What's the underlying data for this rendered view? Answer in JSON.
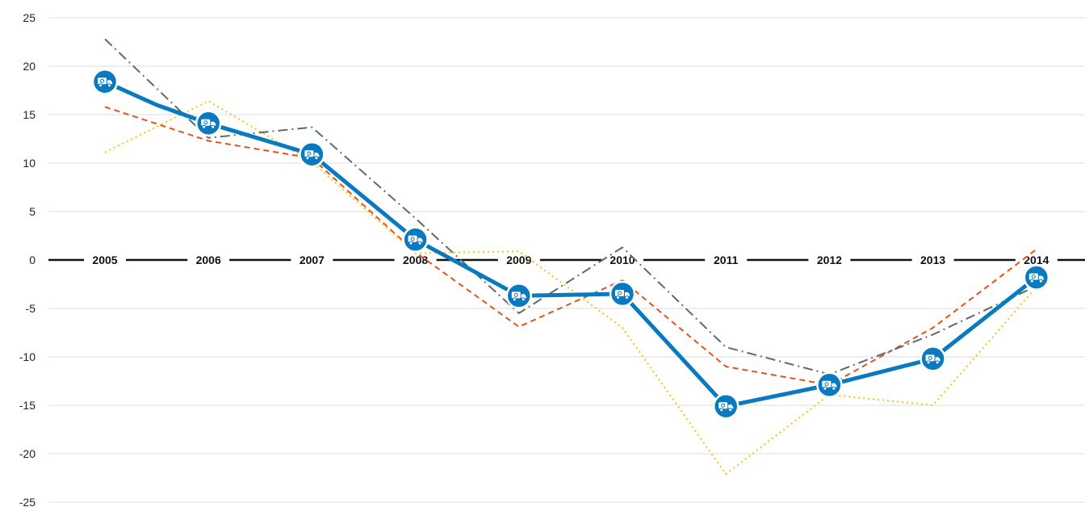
{
  "chart_data": {
    "type": "line",
    "title": "",
    "xlabel": "",
    "ylabel": "",
    "categories": [
      "2005",
      "2006",
      "2007",
      "2008",
      "2009",
      "2010",
      "2011",
      "2012",
      "2013",
      "2014"
    ],
    "ylim": [
      -25,
      25
    ],
    "yticks": [
      25,
      20,
      15,
      10,
      5,
      0,
      -5,
      -10,
      -15,
      -20,
      -25
    ],
    "grid": true,
    "legend": "none",
    "category_labels_on_zero_line": true,
    "series": [
      {
        "values": [
          18.4,
          14.1,
          10.9,
          2.1,
          -3.7,
          -3.5,
          -15.1,
          -12.9,
          -10.2,
          -1.8
        ],
        "color": "#0a7ac0",
        "style": "solid",
        "marker": "truck-icon",
        "extra_points": [
          {
            "x": 0.5,
            "y": 16.0
          }
        ]
      },
      {
        "values": [
          15.8,
          12.3,
          10.5,
          0.8,
          -6.9,
          -2.1,
          -11.0,
          -12.9,
          -7.0,
          1.1
        ],
        "color": "#e0531f",
        "style": "dashed"
      },
      {
        "values": [
          11.1,
          16.4,
          10.1,
          0.7,
          0.9,
          -7.0,
          -22.1,
          -13.9,
          -15.0,
          -2.8
        ],
        "color": "#f2c314",
        "style": "dotted"
      },
      {
        "values": [
          22.8,
          12.6,
          13.7,
          4.3,
          -5.5,
          1.3,
          -9.0,
          -11.8,
          -7.7,
          -2.7
        ],
        "color": "#5c6b68",
        "style": "dashdot"
      }
    ]
  }
}
